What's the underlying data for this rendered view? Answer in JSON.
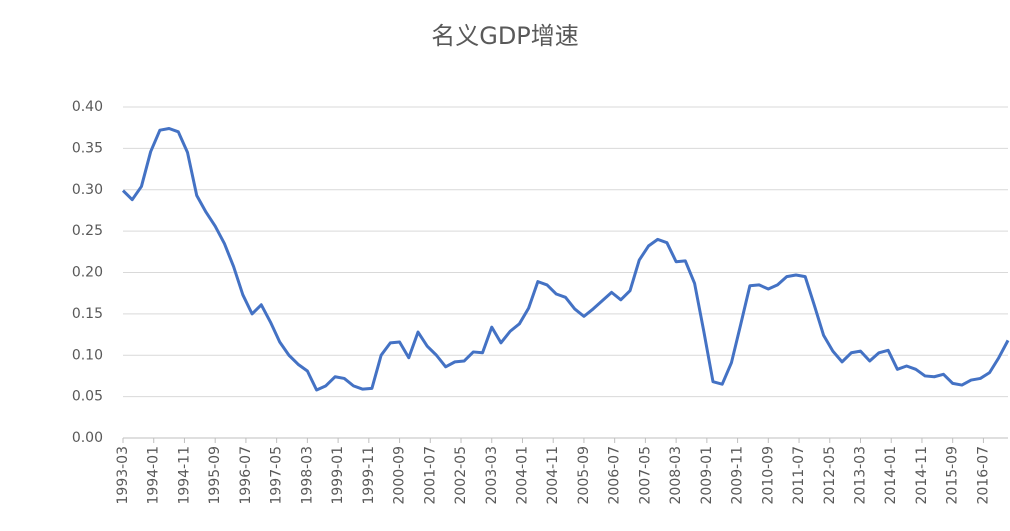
{
  "chart_data": {
    "type": "line",
    "title": "名义GDP增速",
    "x": [
      "1993-03",
      "1993-06",
      "1993-09",
      "1993-12",
      "1994-03",
      "1994-06",
      "1994-09",
      "1994-12",
      "1995-03",
      "1995-06",
      "1995-09",
      "1995-12",
      "1996-03",
      "1996-06",
      "1996-09",
      "1996-12",
      "1997-03",
      "1997-06",
      "1997-09",
      "1997-12",
      "1998-03",
      "1998-06",
      "1998-09",
      "1998-12",
      "1999-03",
      "1999-06",
      "1999-09",
      "1999-12",
      "2000-03",
      "2000-06",
      "2000-09",
      "2000-12",
      "2001-03",
      "2001-06",
      "2001-09",
      "2001-12",
      "2002-03",
      "2002-06",
      "2002-09",
      "2002-12",
      "2003-03",
      "2003-06",
      "2003-09",
      "2003-12",
      "2004-03",
      "2004-06",
      "2004-09",
      "2004-12",
      "2005-03",
      "2005-06",
      "2005-09",
      "2005-12",
      "2006-03",
      "2006-06",
      "2006-09",
      "2006-12",
      "2007-03",
      "2007-06",
      "2007-09",
      "2007-12",
      "2008-03",
      "2008-06",
      "2008-09",
      "2008-12",
      "2009-03",
      "2009-06",
      "2009-09",
      "2009-12",
      "2010-03",
      "2010-06",
      "2010-09",
      "2010-12",
      "2011-03",
      "2011-06",
      "2011-09",
      "2011-12",
      "2012-03",
      "2012-06",
      "2012-09",
      "2012-12",
      "2013-03",
      "2013-06",
      "2013-09",
      "2013-12",
      "2014-03",
      "2014-06",
      "2014-09",
      "2014-12",
      "2015-03",
      "2015-06",
      "2015-09",
      "2015-12",
      "2016-03",
      "2016-06",
      "2016-09",
      "2016-12",
      "2017-03"
    ],
    "series": [
      {
        "color": "#4472c4",
        "values": [
          0.299,
          0.288,
          0.304,
          0.346,
          0.372,
          0.374,
          0.37,
          0.345,
          0.293,
          0.273,
          0.256,
          0.235,
          0.207,
          0.173,
          0.15,
          0.161,
          0.14,
          0.116,
          0.1,
          0.089,
          0.081,
          0.058,
          0.063,
          0.074,
          0.072,
          0.063,
          0.059,
          0.06,
          0.1,
          0.115,
          0.116,
          0.097,
          0.128,
          0.111,
          0.1,
          0.086,
          0.092,
          0.093,
          0.104,
          0.103,
          0.134,
          0.115,
          0.129,
          0.138,
          0.157,
          0.189,
          0.185,
          0.174,
          0.17,
          0.156,
          0.147,
          0.156,
          0.166,
          0.176,
          0.167,
          0.178,
          0.215,
          0.232,
          0.24,
          0.236,
          0.213,
          0.214,
          0.187,
          0.129,
          0.068,
          0.065,
          0.091,
          0.137,
          0.184,
          0.185,
          0.18,
          0.185,
          0.195,
          0.197,
          0.195,
          0.16,
          0.124,
          0.105,
          0.092,
          0.103,
          0.105,
          0.093,
          0.103,
          0.106,
          0.083,
          0.087,
          0.083,
          0.075,
          0.074,
          0.077,
          0.066,
          0.064,
          0.07,
          0.072,
          0.079,
          0.097,
          0.118
        ]
      }
    ],
    "xlim": [
      "1993-03",
      "2017-03"
    ],
    "xticks": [
      "1993-03",
      "1994-01",
      "1994-11",
      "1995-09",
      "1996-07",
      "1997-05",
      "1998-03",
      "1999-01",
      "1999-11",
      "2000-09",
      "2001-07",
      "2002-05",
      "2003-03",
      "2004-01",
      "2004-11",
      "2005-09",
      "2006-07",
      "2007-05",
      "2008-03",
      "2009-01",
      "2009-11",
      "2010-09",
      "2011-07",
      "2012-05",
      "2013-03",
      "2014-01",
      "2014-11",
      "2015-09",
      "2016-07"
    ],
    "ylim": [
      0,
      0.4
    ],
    "yticks": [
      {
        "value": 0,
        "label": "0.00"
      },
      {
        "value": 0.05,
        "label": "0.05"
      },
      {
        "value": 0.1,
        "label": "0.10"
      },
      {
        "value": 0.15,
        "label": "0.15"
      },
      {
        "value": 0.2,
        "label": "0.20"
      },
      {
        "value": 0.25,
        "label": "0.25"
      },
      {
        "value": 0.3,
        "label": "0.30"
      },
      {
        "value": 0.35,
        "label": "0.35"
      },
      {
        "value": 0.4,
        "label": "0.40"
      }
    ],
    "grid": true
  }
}
